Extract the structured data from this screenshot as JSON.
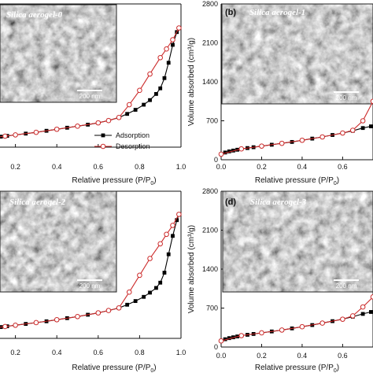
{
  "chart_data": [
    {
      "type": "line",
      "panel_label": "",
      "sample_label": "Silica aerogel-0",
      "xlabel": "Relative pressure (P/P",
      "xlabel_sub": "0",
      "xlabel_close": ")",
      "ylabel": "",
      "xlim": [
        0.0,
        1.0
      ],
      "ylim": [
        0,
        2800
      ],
      "x_ticks": [
        "0.2",
        "0.4",
        "0.6",
        "0.8",
        "1.0"
      ],
      "y_ticks": [],
      "scale_bar": "200 nm",
      "legend": [
        "Adsorption",
        "Desorption"
      ],
      "series": [
        {
          "name": "Adsorption",
          "color": "#000000",
          "marker": "filled-square",
          "x": [
            0.0,
            0.02,
            0.04,
            0.06,
            0.08,
            0.1,
            0.13,
            0.16,
            0.2,
            0.25,
            0.3,
            0.35,
            0.4,
            0.45,
            0.5,
            0.55,
            0.6,
            0.65,
            0.7,
            0.74,
            0.78,
            0.82,
            0.85,
            0.88,
            0.9,
            0.92,
            0.94,
            0.96,
            0.98,
            0.99
          ],
          "y": [
            140,
            150,
            160,
            170,
            180,
            190,
            205,
            220,
            240,
            265,
            290,
            320,
            350,
            380,
            410,
            440,
            475,
            520,
            580,
            650,
            730,
            830,
            920,
            1040,
            1150,
            1350,
            1650,
            2000,
            2250,
            2330
          ]
        },
        {
          "name": "Desorption",
          "color": "#cc2b2b",
          "marker": "open-circle",
          "x": [
            0.0,
            0.05,
            0.1,
            0.15,
            0.2,
            0.3,
            0.4,
            0.5,
            0.6,
            0.65,
            0.7,
            0.75,
            0.8,
            0.85,
            0.9,
            0.93,
            0.96,
            0.99
          ],
          "y": [
            140,
            165,
            190,
            215,
            240,
            290,
            350,
            410,
            475,
            520,
            580,
            830,
            1110,
            1430,
            1750,
            1920,
            2100,
            2330
          ]
        }
      ]
    },
    {
      "type": "line",
      "panel_label": "(b)",
      "sample_label": "Silica aerogel-1",
      "xlabel": "Relative pressure (P/P",
      "xlabel_sub": "0",
      "xlabel_close": ")",
      "ylabel": "Volume absorbed (cm³/g)",
      "xlim": [
        0.0,
        0.75
      ],
      "ylim": [
        0,
        2800
      ],
      "x_ticks": [
        "0.0",
        "0.2",
        "0.4",
        "0.6"
      ],
      "y_ticks": [
        "0",
        "700",
        "1400",
        "2100",
        "2800"
      ],
      "scale_bar": "200 nm",
      "legend": [],
      "series": [
        {
          "name": "Adsorption",
          "color": "#000000",
          "marker": "filled-square",
          "x": [
            0.0,
            0.02,
            0.04,
            0.06,
            0.08,
            0.1,
            0.13,
            0.16,
            0.2,
            0.25,
            0.3,
            0.35,
            0.4,
            0.45,
            0.5,
            0.55,
            0.6,
            0.65,
            0.7,
            0.74
          ],
          "y": [
            100,
            130,
            150,
            165,
            180,
            195,
            210,
            225,
            245,
            270,
            295,
            320,
            350,
            380,
            410,
            445,
            480,
            520,
            570,
            600
          ]
        },
        {
          "name": "Desorption",
          "color": "#cc2b2b",
          "marker": "open-circle",
          "x": [
            0.0,
            0.1,
            0.2,
            0.3,
            0.4,
            0.5,
            0.6,
            0.65,
            0.7,
            0.75
          ],
          "y": [
            100,
            195,
            245,
            295,
            350,
            410,
            480,
            530,
            700,
            1050
          ]
        }
      ]
    },
    {
      "type": "line",
      "panel_label": "",
      "sample_label": "Silica aerogel-2",
      "xlabel": "Relative pressure (P/P",
      "xlabel_sub": "0",
      "xlabel_close": ")",
      "ylabel": "",
      "xlim": [
        0.0,
        1.0
      ],
      "ylim": [
        0,
        2800
      ],
      "x_ticks": [
        "0.2",
        "0.4",
        "0.6",
        "0.8",
        "1.0"
      ],
      "y_ticks": [],
      "scale_bar": "200 nm",
      "legend": [],
      "series": [
        {
          "name": "Adsorption",
          "color": "#000000",
          "marker": "filled-square",
          "x": [
            0.0,
            0.02,
            0.04,
            0.06,
            0.08,
            0.1,
            0.13,
            0.16,
            0.2,
            0.25,
            0.3,
            0.35,
            0.4,
            0.45,
            0.5,
            0.55,
            0.6,
            0.65,
            0.7,
            0.74,
            0.78,
            0.82,
            0.85,
            0.88,
            0.9,
            0.92,
            0.94,
            0.96,
            0.98,
            0.99
          ],
          "y": [
            150,
            160,
            170,
            180,
            190,
            200,
            215,
            230,
            250,
            275,
            300,
            325,
            355,
            385,
            415,
            450,
            485,
            530,
            580,
            640,
            710,
            790,
            870,
            960,
            1060,
            1250,
            1600,
            1950,
            2250,
            2360
          ]
        },
        {
          "name": "Desorption",
          "color": "#cc2b2b",
          "marker": "open-circle",
          "x": [
            0.0,
            0.05,
            0.1,
            0.15,
            0.2,
            0.3,
            0.4,
            0.5,
            0.6,
            0.65,
            0.7,
            0.75,
            0.8,
            0.85,
            0.9,
            0.93,
            0.96,
            0.99
          ],
          "y": [
            150,
            175,
            200,
            225,
            250,
            300,
            355,
            415,
            485,
            530,
            580,
            880,
            1200,
            1520,
            1800,
            1980,
            2150,
            2360
          ]
        }
      ]
    },
    {
      "type": "line",
      "panel_label": "(d)",
      "sample_label": "Silica aerogel-3",
      "xlabel": "Relative pressure (P/P",
      "xlabel_sub": "0",
      "xlabel_close": ")",
      "ylabel": "Volume absorbed (cm³/g)",
      "xlim": [
        0.0,
        0.75
      ],
      "ylim": [
        0,
        2800
      ],
      "x_ticks": [
        "0.0",
        "0.2",
        "0.4",
        "0.6"
      ],
      "y_ticks": [
        "0",
        "700",
        "1400",
        "2100",
        "2800"
      ],
      "scale_bar": "200 nm",
      "legend": [],
      "series": [
        {
          "name": "Adsorption",
          "color": "#000000",
          "marker": "filled-square",
          "x": [
            0.0,
            0.02,
            0.04,
            0.06,
            0.08,
            0.1,
            0.13,
            0.16,
            0.2,
            0.25,
            0.3,
            0.35,
            0.4,
            0.45,
            0.5,
            0.55,
            0.6,
            0.65,
            0.7,
            0.74
          ],
          "y": [
            110,
            140,
            160,
            175,
            190,
            205,
            220,
            235,
            255,
            280,
            305,
            335,
            365,
            395,
            430,
            465,
            500,
            545,
            595,
            630
          ]
        },
        {
          "name": "Desorption",
          "color": "#cc2b2b",
          "marker": "open-circle",
          "x": [
            0.0,
            0.1,
            0.2,
            0.3,
            0.4,
            0.5,
            0.6,
            0.65,
            0.7,
            0.75
          ],
          "y": [
            110,
            205,
            255,
            305,
            365,
            430,
            500,
            560,
            720,
            900
          ]
        }
      ]
    }
  ]
}
